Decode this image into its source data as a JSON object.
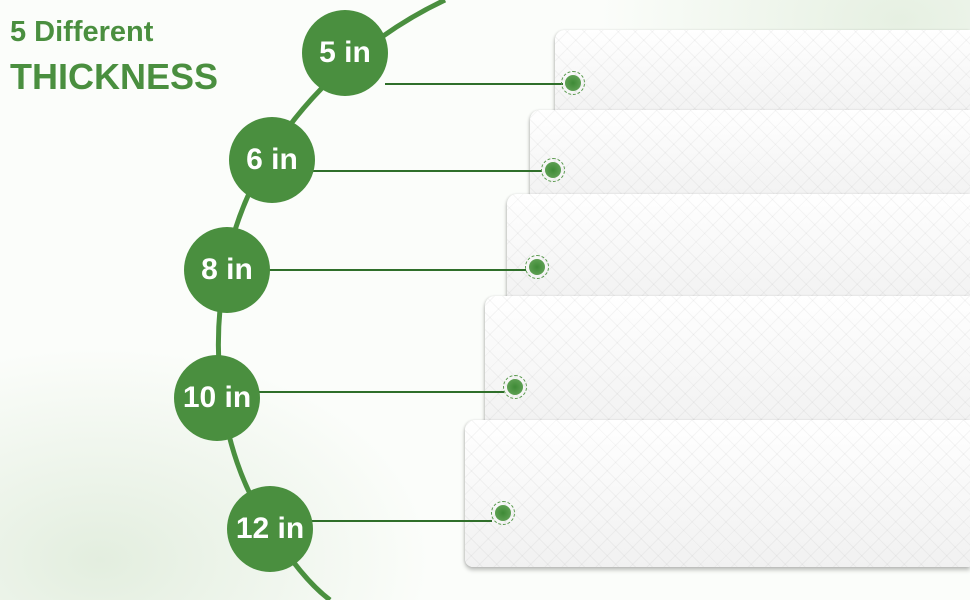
{
  "heading": {
    "line1": "5 Different",
    "line2": "THICKNESS"
  },
  "accent_color": "#4a8f3f",
  "thickness_options": [
    {
      "label": "5 in"
    },
    {
      "label": "6 in"
    },
    {
      "label": "8 in"
    },
    {
      "label": "10 in"
    },
    {
      "label": "12 in"
    }
  ]
}
